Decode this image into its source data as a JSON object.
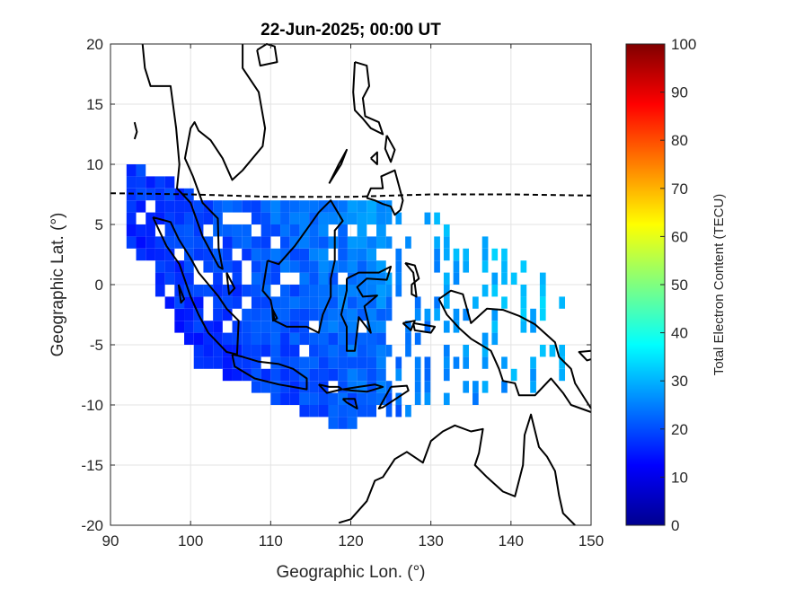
{
  "chart_data": {
    "type": "heatmap",
    "title": "22-Jun-2025; 00:00 UT",
    "xlabel": "Geographic Lon. (°)",
    "ylabel": "Geographic Lat. (°)",
    "xlim": [
      90,
      150
    ],
    "ylim": [
      -20,
      20
    ],
    "x_ticks": [
      "90",
      "100",
      "110",
      "120",
      "130",
      "140",
      "150"
    ],
    "y_ticks": [
      "20",
      "15",
      "10",
      "5",
      "0",
      "-5",
      "-10",
      "-15",
      "-20"
    ],
    "grid": true,
    "colorbar": {
      "label": "Total Electron Content (TECU)",
      "range": [
        0,
        100
      ],
      "ticks": [
        "100",
        "90",
        "80",
        "70",
        "60",
        "50",
        "40",
        "30",
        "20",
        "10",
        "0"
      ],
      "colormap": "jet"
    },
    "magnetic_equator": {
      "style": "dashed",
      "points": [
        [
          90,
          7.6
        ],
        [
          100,
          7.5
        ],
        [
          110,
          7.3
        ],
        [
          120,
          7.3
        ],
        [
          130,
          7.5
        ],
        [
          140,
          7.5
        ],
        [
          150,
          7.4
        ]
      ]
    },
    "coastlines": [
      [
        [
          93,
          13.5
        ],
        [
          93.3,
          12.7
        ],
        [
          93,
          12.1
        ]
      ],
      [
        [
          94,
          20
        ],
        [
          94.3,
          18
        ],
        [
          95,
          16.5
        ],
        [
          97.5,
          16.5
        ],
        [
          98.2,
          13
        ],
        [
          98.6,
          10
        ],
        [
          98.3,
          8
        ],
        [
          100,
          6.8
        ],
        [
          101.5,
          4
        ],
        [
          103.5,
          1.5
        ],
        [
          104,
          1.3
        ],
        [
          103.5,
          3
        ],
        [
          103.4,
          5.5
        ],
        [
          101.5,
          6.8
        ],
        [
          100.3,
          9
        ],
        [
          99.3,
          10.5
        ],
        [
          100,
          13
        ],
        [
          100.5,
          13.5
        ],
        [
          101,
          12.8
        ],
        [
          102.5,
          12
        ],
        [
          104,
          10.5
        ],
        [
          105.2,
          8.7
        ],
        [
          106.5,
          9.5
        ],
        [
          109,
          11.5
        ],
        [
          109.3,
          13
        ],
        [
          108.5,
          16
        ],
        [
          106.5,
          18
        ],
        [
          106.5,
          20
        ]
      ],
      [
        [
          108.3,
          19.5
        ],
        [
          109.5,
          20
        ],
        [
          110.5,
          19.8
        ],
        [
          110.8,
          18.5
        ],
        [
          108.7,
          18.2
        ],
        [
          108.3,
          19.5
        ]
      ],
      [
        [
          95.3,
          5.6
        ],
        [
          97.5,
          5.2
        ],
        [
          98.5,
          3.8
        ],
        [
          100,
          2.2
        ],
        [
          101,
          1
        ],
        [
          103.5,
          -1
        ],
        [
          104.5,
          -2
        ],
        [
          106,
          -3
        ],
        [
          105.8,
          -5.8
        ],
        [
          104.5,
          -5.6
        ],
        [
          102.2,
          -4
        ],
        [
          101,
          -2.5
        ],
        [
          100,
          -1
        ],
        [
          98.6,
          1.7
        ],
        [
          97,
          3.2
        ],
        [
          95.3,
          5.6
        ]
      ],
      [
        [
          98.5,
          0
        ],
        [
          99.2,
          -1.2
        ],
        [
          98.8,
          -1.5
        ],
        [
          98.5,
          0
        ]
      ],
      [
        [
          105.2,
          -5.8
        ],
        [
          106.5,
          -6
        ],
        [
          108.5,
          -6.4
        ],
        [
          111,
          -6.6
        ],
        [
          112.8,
          -7
        ],
        [
          114.5,
          -7.8
        ],
        [
          114.5,
          -8.7
        ],
        [
          111,
          -8.3
        ],
        [
          108,
          -7.8
        ],
        [
          105.5,
          -6.8
        ],
        [
          105.2,
          -5.8
        ]
      ],
      [
        [
          109.6,
          2
        ],
        [
          111,
          1.7
        ],
        [
          113,
          3.2
        ],
        [
          114.5,
          4.6
        ],
        [
          116,
          6
        ],
        [
          117.5,
          7
        ],
        [
          119,
          5.3
        ],
        [
          118,
          4.5
        ],
        [
          118,
          2
        ],
        [
          117.5,
          0.5
        ],
        [
          117.5,
          -1
        ],
        [
          116.5,
          -2.5
        ],
        [
          116,
          -4
        ],
        [
          114.5,
          -3.5
        ],
        [
          112,
          -3.5
        ],
        [
          110.5,
          -3
        ],
        [
          110,
          -1.3
        ],
        [
          109,
          -0.5
        ],
        [
          109.6,
          2
        ]
      ],
      [
        [
          119.5,
          0.5
        ],
        [
          121,
          1
        ],
        [
          123.5,
          1
        ],
        [
          125,
          1.5
        ],
        [
          124.5,
          0.4
        ],
        [
          122,
          0.5
        ],
        [
          120.8,
          -0.2
        ],
        [
          121.5,
          -1
        ],
        [
          123.3,
          -0.9
        ],
        [
          121.7,
          -1.8
        ],
        [
          122.5,
          -4
        ],
        [
          121,
          -2.7
        ],
        [
          120.5,
          -5.5
        ],
        [
          119.5,
          -5.5
        ],
        [
          119.5,
          -3.5
        ],
        [
          118.8,
          -2.5
        ],
        [
          119.5,
          -0.5
        ],
        [
          119.5,
          0.5
        ]
      ],
      [
        [
          120.5,
          18.5
        ],
        [
          122,
          18.2
        ],
        [
          122.3,
          16.5
        ],
        [
          121.5,
          15.5
        ],
        [
          121.8,
          14
        ],
        [
          123.5,
          13.5
        ],
        [
          124,
          12.5
        ],
        [
          122.5,
          13
        ],
        [
          121.5,
          13.8
        ],
        [
          120.5,
          14.5
        ],
        [
          120.3,
          16
        ],
        [
          120.5,
          18.5
        ]
      ],
      [
        [
          117.3,
          8.4
        ],
        [
          118.8,
          10
        ],
        [
          119.5,
          11.2
        ],
        [
          118.5,
          10
        ],
        [
          117.3,
          8.4
        ]
      ],
      [
        [
          122,
          7.2
        ],
        [
          122.5,
          8
        ],
        [
          124,
          8
        ],
        [
          123.8,
          9
        ],
        [
          125.5,
          9.5
        ],
        [
          126.5,
          7
        ],
        [
          126.2,
          6.2
        ],
        [
          125.5,
          5.8
        ],
        [
          125,
          6.5
        ],
        [
          124,
          6.7
        ],
        [
          123,
          7
        ],
        [
          122,
          7.2
        ]
      ],
      [
        [
          122.5,
          10.5
        ],
        [
          123.3,
          11
        ],
        [
          123.3,
          10
        ],
        [
          122.5,
          10.5
        ]
      ],
      [
        [
          124.5,
          12.4
        ],
        [
          125.5,
          11.2
        ],
        [
          125,
          10.2
        ],
        [
          124.3,
          11.3
        ],
        [
          124.5,
          12.4
        ]
      ],
      [
        [
          126.8,
          1.8
        ],
        [
          128,
          1.6
        ],
        [
          128.5,
          0.5
        ],
        [
          127.6,
          0
        ],
        [
          127.6,
          -0.8
        ],
        [
          128.2,
          -1
        ],
        [
          127.8,
          1
        ],
        [
          126.8,
          1.8
        ]
      ],
      [
        [
          126.5,
          -3.2
        ],
        [
          128,
          -3
        ],
        [
          127.5,
          -3.8
        ],
        [
          126.5,
          -3.2
        ]
      ],
      [
        [
          127.8,
          -3.2
        ],
        [
          130.5,
          -3.5
        ],
        [
          130,
          -4
        ],
        [
          128,
          -3.8
        ],
        [
          127.8,
          -3.2
        ]
      ],
      [
        [
          131,
          -1.2
        ],
        [
          132.5,
          -0.5
        ],
        [
          134,
          -0.8
        ],
        [
          135,
          -3.2
        ],
        [
          137,
          -2
        ],
        [
          139,
          -2.1
        ],
        [
          141,
          -2.6
        ],
        [
          143,
          -3.3
        ],
        [
          145.5,
          -4.8
        ],
        [
          146,
          -6
        ],
        [
          147.5,
          -7
        ],
        [
          148,
          -8.2
        ],
        [
          150,
          -10.3
        ]
      ],
      [
        [
          131,
          -1.2
        ],
        [
          132,
          -2.5
        ],
        [
          133.5,
          -3.6
        ],
        [
          135,
          -4.5
        ],
        [
          137.5,
          -5.5
        ],
        [
          138.5,
          -7
        ],
        [
          139,
          -8
        ],
        [
          140.5,
          -8.2
        ],
        [
          141,
          -9.2
        ],
        [
          143,
          -9.2
        ],
        [
          145,
          -7.8
        ],
        [
          146.5,
          -9
        ],
        [
          147.5,
          -10
        ],
        [
          150,
          -10.6
        ]
      ],
      [
        [
          150,
          -5.5
        ],
        [
          148.5,
          -5.6
        ],
        [
          149.5,
          -6.3
        ],
        [
          150,
          -6.2
        ]
      ],
      [
        [
          118.5,
          -19.8
        ],
        [
          120,
          -19.5
        ],
        [
          122,
          -18
        ],
        [
          123,
          -16.3
        ],
        [
          124,
          -16
        ],
        [
          125.5,
          -14.5
        ],
        [
          127,
          -13.9
        ],
        [
          129,
          -14.8
        ],
        [
          130,
          -13
        ],
        [
          131.5,
          -12.2
        ],
        [
          133,
          -11.7
        ],
        [
          135,
          -12.2
        ],
        [
          136.5,
          -12
        ],
        [
          136,
          -14
        ],
        [
          135.5,
          -15
        ],
        [
          137,
          -16
        ],
        [
          139,
          -17.2
        ],
        [
          140.5,
          -17.6
        ],
        [
          141.5,
          -15
        ],
        [
          141.7,
          -12.5
        ],
        [
          142.5,
          -10.8
        ],
        [
          143.5,
          -13.5
        ],
        [
          144.5,
          -14.3
        ],
        [
          145.5,
          -15.5
        ],
        [
          146,
          -17.5
        ],
        [
          146.5,
          -19
        ],
        [
          148,
          -20
        ]
      ],
      [
        [
          125,
          -8.5
        ],
        [
          127,
          -8.4
        ],
        [
          127.2,
          -8.8
        ],
        [
          124,
          -10.2
        ],
        [
          123.5,
          -10.3
        ],
        [
          125,
          -8.5
        ]
      ],
      [
        [
          119,
          -8.7
        ],
        [
          121,
          -8.5
        ],
        [
          123,
          -8.3
        ],
        [
          124,
          -8.5
        ],
        [
          122,
          -8.9
        ],
        [
          120,
          -8.8
        ],
        [
          119,
          -8.7
        ]
      ],
      [
        [
          116,
          -8.3
        ],
        [
          117.3,
          -8.5
        ],
        [
          118.5,
          -8.5
        ],
        [
          118.9,
          -8.7
        ],
        [
          117,
          -9
        ],
        [
          116,
          -8.3
        ]
      ],
      [
        [
          119,
          -9.5
        ],
        [
          120.5,
          -9.5
        ],
        [
          120.8,
          -10.3
        ],
        [
          119.5,
          -9.8
        ],
        [
          119,
          -9.5
        ]
      ],
      [
        [
          110.2,
          -2
        ],
        [
          110.8,
          -2.8
        ],
        [
          110.3,
          -3
        ],
        [
          110.2,
          -2
        ]
      ],
      [
        [
          104.5,
          1
        ],
        [
          105.5,
          -0.3
        ],
        [
          104.8,
          -0.8
        ],
        [
          104.5,
          1
        ]
      ]
    ]
  }
}
